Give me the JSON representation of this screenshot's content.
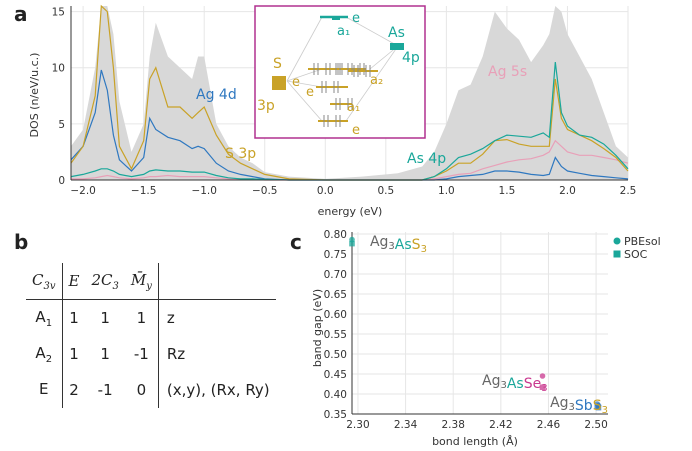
{
  "panels": {
    "a": "a",
    "b": "b",
    "c": "c"
  },
  "chart_a": {
    "type": "area",
    "ylabel": "DOS (n/eV/u.c.)",
    "xlabel": "energy (eV)",
    "xticks": [
      "−2.0",
      "−1.5",
      "−1.0",
      "−0.5",
      "0.0",
      "0.5",
      "1.0",
      "1.5",
      "2.0",
      "2.5"
    ],
    "yticks": [
      "0",
      "5",
      "10",
      "15"
    ],
    "xlim": [
      -2.1,
      2.5
    ],
    "ylim": [
      0,
      15.5
    ],
    "labels": {
      "ag4d": "Ag 4d",
      "s3p": "S 3p",
      "ag5s": "Ag 5s",
      "as4p": "As 4p"
    },
    "colors": {
      "total": "#d8d8d8",
      "ag4d": "#2f78c0",
      "s3p": "#c9a227",
      "ag5s": "#e8a0b8",
      "as4p": "#1aa79a",
      "ag5s_line": "#999999",
      "inset_border": "#b0308f"
    },
    "inset": {
      "s_label": "S",
      "s_orb": "3p",
      "as_label": "As",
      "as_orb": "4p",
      "levels": [
        "e",
        "a1",
        "e",
        "a2",
        "e",
        "a1",
        "e"
      ],
      "levels_display": [
        "e",
        "a₁",
        "e",
        "a₂",
        "e",
        "a₁",
        "e"
      ]
    }
  },
  "chart_data": [
    {
      "type": "area",
      "title": "",
      "xlabel": "energy (eV)",
      "ylabel": "DOS (n/eV/u.c.)",
      "x": [
        -2.1,
        -2.0,
        -1.9,
        -1.85,
        -1.8,
        -1.75,
        -1.7,
        -1.6,
        -1.5,
        -1.45,
        -1.4,
        -1.3,
        -1.2,
        -1.1,
        -1.05,
        -1.0,
        -0.9,
        -0.8,
        -0.7,
        -0.6,
        -0.5,
        -0.3,
        0.0,
        0.3,
        0.6,
        0.8,
        0.9,
        1.0,
        1.1,
        1.2,
        1.3,
        1.4,
        1.5,
        1.6,
        1.7,
        1.8,
        1.85,
        1.9,
        1.95,
        2.0,
        2.1,
        2.2,
        2.3,
        2.4,
        2.5
      ],
      "series": [
        {
          "name": "",
          "values": [
            3.0,
            4.5,
            10,
            16,
            17,
            13,
            7,
            2.5,
            5,
            11,
            14,
            11,
            10,
            9,
            11,
            11,
            5,
            3,
            2,
            1.5,
            0.7,
            0.3,
            0.1,
            0.3,
            0.6,
            1.2,
            2.5,
            5,
            8,
            8.5,
            11,
            15,
            13.5,
            12.5,
            10.5,
            12,
            13,
            16.5,
            15,
            13,
            11,
            9,
            6,
            3,
            2
          ]
        },
        {
          "name": "Ag 4d",
          "values": [
            1.8,
            3,
            6,
            9.8,
            8,
            4,
            1.8,
            0.8,
            2,
            5.5,
            4.5,
            3.8,
            3.5,
            2.8,
            3,
            2.8,
            1.5,
            0.8,
            0.5,
            0.3,
            0.1,
            0,
            0,
            0,
            0,
            0,
            0,
            0.1,
            0.3,
            0.4,
            0.5,
            0.8,
            0.8,
            0.7,
            0.5,
            0.4,
            0.5,
            2,
            1.2,
            0.8,
            0.6,
            0.4,
            0.3,
            0.2,
            0.1
          ]
        },
        {
          "name": "S 3p",
          "values": [
            1.5,
            3,
            7.5,
            16,
            15,
            10,
            3,
            1,
            3.5,
            9,
            10,
            6.5,
            6.5,
            5.5,
            6,
            6.5,
            4,
            2.3,
            1.5,
            1,
            0.5,
            0.1,
            0,
            0,
            0,
            0,
            0.3,
            0.8,
            1.5,
            1.5,
            2.3,
            3.5,
            3.6,
            3.2,
            3,
            3,
            3,
            9,
            5.5,
            4.5,
            4,
            3.5,
            2.8,
            2,
            0.8
          ]
        },
        {
          "name": "Ag 5s",
          "values": [
            0.1,
            0.1,
            0.2,
            0.3,
            0.4,
            0.3,
            0.2,
            0.1,
            0.2,
            0.3,
            0.3,
            0.4,
            0.3,
            0.3,
            0.3,
            0.3,
            0.2,
            0.1,
            0.1,
            0.1,
            0,
            0,
            0,
            0,
            0,
            0,
            0.1,
            0.3,
            0.5,
            0.6,
            1,
            1.3,
            1.6,
            1.8,
            1.9,
            2.2,
            2.5,
            3.5,
            3,
            2.5,
            2.2,
            2.2,
            2,
            1.8,
            1.5
          ]
        },
        {
          "name": "As 4p",
          "values": [
            0.3,
            0.5,
            0.8,
            1,
            1,
            0.8,
            0.5,
            0.3,
            0.5,
            0.8,
            0.9,
            0.8,
            0.8,
            0.7,
            0.7,
            0.7,
            0.4,
            0.2,
            0.1,
            0.1,
            0.05,
            0,
            0,
            0,
            0,
            0,
            0.3,
            1,
            2,
            2.3,
            2.8,
            3.5,
            4,
            3.9,
            3.8,
            4.2,
            3.8,
            10.5,
            6,
            4.8,
            4,
            3.8,
            3.2,
            2.2,
            1
          ]
        }
      ]
    },
    {
      "type": "scatter",
      "title": "",
      "xlabel": "bond length (Å)",
      "ylabel": "band gap (eV)",
      "xlim": [
        2.295,
        2.51
      ],
      "ylim": [
        0.35,
        0.805
      ],
      "xticks": [
        "2.30",
        "2.34",
        "2.38",
        "2.42",
        "2.46",
        "2.50"
      ],
      "yticks": [
        "0.35",
        "0.40",
        "0.45",
        "0.50",
        "0.55",
        "0.60",
        "0.65",
        "0.70",
        "0.75",
        "0.80"
      ],
      "legend": {
        "placement": "top-right"
      },
      "series": [
        {
          "name": "PBEsol",
          "marker": "circle",
          "points": [
            [
              2.295,
              0.786
            ],
            [
              2.455,
              0.445
            ],
            [
              2.501,
              0.375
            ],
            [
              2.502,
              0.371
            ]
          ]
        },
        {
          "name": "SOC",
          "marker": "square",
          "points": [
            [
              2.295,
              0.776
            ],
            [
              2.455,
              0.417
            ],
            [
              2.501,
              0.369
            ],
            [
              2.502,
              0.366
            ]
          ]
        }
      ],
      "point_colors": [
        "#1aa79a",
        "#c9388f",
        "#2f78c0",
        "#2f78c0"
      ],
      "annotations": [
        {
          "parts": [
            [
              "Ag",
              "#666666"
            ],
            [
              "3",
              "#666666",
              "sub"
            ],
            [
              "As",
              "#1aa79a"
            ],
            [
              "S",
              "#c9a227"
            ],
            [
              "3",
              "#c9a227",
              "sub"
            ]
          ]
        },
        {
          "parts": [
            [
              "Ag",
              "#666666"
            ],
            [
              "3",
              "#666666",
              "sub"
            ],
            [
              "As",
              "#1aa79a"
            ],
            [
              "Se",
              "#c9388f"
            ],
            [
              "3",
              "#c9388f",
              "sub"
            ]
          ]
        },
        {
          "parts": [
            [
              "Ag",
              "#666666"
            ],
            [
              "3",
              "#666666",
              "sub"
            ],
            [
              "Sb",
              "#2f78c0"
            ],
            [
              "S",
              "#c9a227"
            ],
            [
              "3",
              "#c9a227",
              "sub"
            ]
          ]
        }
      ]
    }
  ],
  "table_b": {
    "header": [
      "C3v",
      "E",
      "2C3",
      "M̄y",
      ""
    ],
    "rows": [
      {
        "irrep": "A",
        "sub": "1",
        "chars": [
          "1",
          "1",
          "1"
        ],
        "basis": "z"
      },
      {
        "irrep": "A",
        "sub": "2",
        "chars": [
          "1",
          "1",
          "-1"
        ],
        "basis": "Rz"
      },
      {
        "irrep": "E",
        "sub": "",
        "chars": [
          "2",
          "-1",
          "0"
        ],
        "basis": "(x,y), (Rx, Ry)"
      }
    ]
  }
}
